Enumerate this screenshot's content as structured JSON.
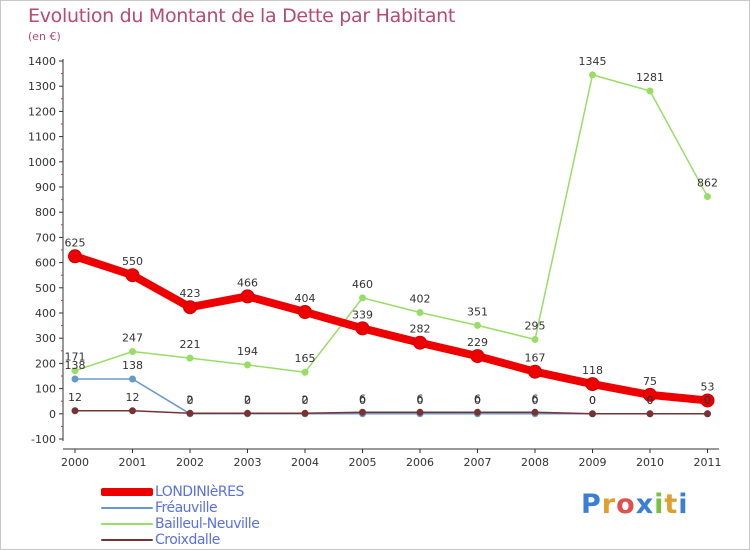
{
  "title": "Evolution du Montant de la Dette par Habitant",
  "unit": "(en €)",
  "logo_text": "Proxiti",
  "logo_colors": [
    "#3a7fd5",
    "#e0a030",
    "#e05050",
    "#3a7fd5",
    "#7ac040",
    "#e0a030",
    "#3a7fd5"
  ],
  "chart_data": {
    "type": "line",
    "title": "Evolution du Montant de la Dette par Habitant",
    "ylabel": "(en €)",
    "xlabel": "",
    "categories": [
      "2000",
      "2001",
      "2002",
      "2003",
      "2004",
      "2005",
      "2006",
      "2007",
      "2008",
      "2009",
      "2010",
      "2011"
    ],
    "ylim": [
      -100,
      1400
    ],
    "yticks": [
      -100,
      0,
      100,
      200,
      300,
      400,
      500,
      600,
      700,
      800,
      900,
      1000,
      1100,
      1200,
      1300,
      1400
    ],
    "grid": false,
    "legend_position": "bottom-left",
    "series": [
      {
        "name": "LONDINIèRES",
        "color": "#ee0000",
        "values": [
          625,
          550,
          423,
          466,
          404,
          339,
          282,
          229,
          167,
          118,
          75,
          53
        ],
        "labels": [
          "625",
          "550",
          "423",
          "466",
          "404",
          "339",
          "282",
          "229",
          "167",
          "118",
          "75",
          "53"
        ]
      },
      {
        "name": "Fréauville",
        "color": "#6699cc",
        "values": [
          138,
          138,
          0,
          0,
          0,
          0,
          0,
          0,
          0,
          0,
          0,
          0
        ],
        "labels": [
          "138",
          "138",
          "0",
          "0",
          "0",
          "0",
          "0",
          "0",
          "0",
          "0",
          "0",
          "0"
        ]
      },
      {
        "name": "Bailleul-Neuville",
        "color": "#99dd66",
        "values": [
          171,
          247,
          221,
          194,
          165,
          460,
          402,
          351,
          295,
          1345,
          1281,
          862
        ],
        "labels": [
          "171",
          "247",
          "221",
          "194",
          "165",
          "460",
          "402",
          "351",
          "295",
          "1345",
          "1281",
          "862"
        ]
      },
      {
        "name": "Croixdalle",
        "color": "#773333",
        "values": [
          12,
          12,
          2,
          2,
          2,
          6,
          6,
          6,
          6,
          0,
          0,
          0
        ],
        "labels": [
          "12",
          "12",
          "2",
          "2",
          "2",
          "6",
          "6",
          "6",
          "6",
          "0",
          "0",
          "0"
        ]
      }
    ]
  }
}
